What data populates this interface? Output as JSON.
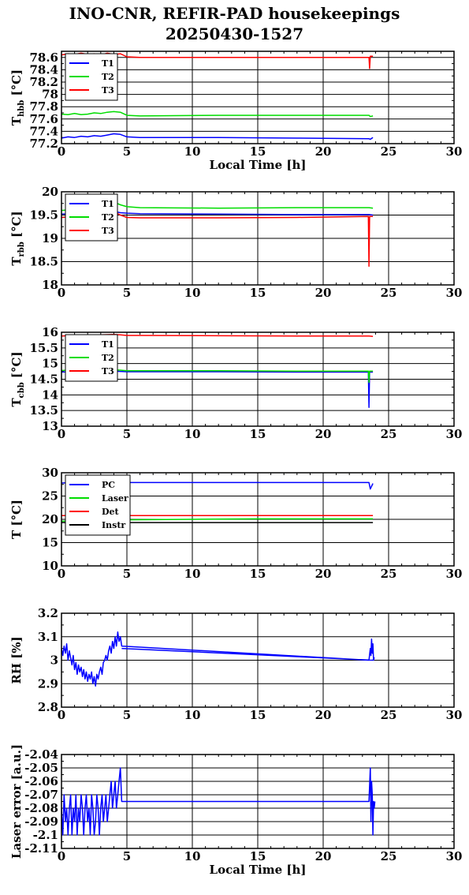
{
  "title_line1": "INO-CNR, REFIR-PAD housekeepings",
  "title_line2": "20250430-1527",
  "colors": {
    "blue": "#0000ff",
    "green": "#00dd00",
    "red": "#ff0000",
    "black": "#000000"
  },
  "chart_data": [
    {
      "type": "line",
      "ylabel": "T_hbb [°C]",
      "xlabel": "Local Time [h]",
      "xlim": [
        0,
        30
      ],
      "ylim": [
        77.2,
        78.7
      ],
      "xticks": [
        0,
        5,
        10,
        15,
        20,
        25,
        30
      ],
      "yticks": [
        77.2,
        77.4,
        77.6,
        77.8,
        78,
        78.2,
        78.4,
        78.6
      ],
      "yticklabels": [
        "77.2",
        "77.4",
        "77.6",
        "77.8",
        "78",
        "78.2",
        "78.4",
        "78.6"
      ],
      "grid": true,
      "legend_position": "top-left",
      "series": [
        {
          "name": "T1",
          "color": "blue",
          "x": [
            0,
            0.5,
            1,
            1.5,
            2,
            2.5,
            3,
            3.5,
            4,
            4.5,
            5,
            6,
            12,
            18,
            23.5,
            23.6,
            23.8
          ],
          "y": [
            77.29,
            77.31,
            77.3,
            77.32,
            77.31,
            77.33,
            77.32,
            77.34,
            77.36,
            77.35,
            77.31,
            77.3,
            77.3,
            77.29,
            77.28,
            77.27,
            77.3
          ]
        },
        {
          "name": "T2",
          "color": "green",
          "x": [
            0,
            0.5,
            1,
            1.5,
            2,
            2.5,
            3,
            3.5,
            4,
            4.5,
            5,
            6,
            12,
            18,
            23.5,
            23.6,
            23.8
          ],
          "y": [
            77.68,
            77.67,
            77.69,
            77.67,
            77.68,
            77.7,
            77.69,
            77.71,
            77.72,
            77.71,
            77.66,
            77.65,
            77.66,
            77.66,
            77.66,
            77.64,
            77.65
          ]
        },
        {
          "name": "T3",
          "color": "red",
          "x": [
            0,
            0.5,
            1,
            1.5,
            2,
            2.5,
            3,
            3.5,
            4,
            4.5,
            5,
            6,
            12,
            18,
            23.5,
            23.55,
            23.6,
            23.8
          ],
          "y": [
            78.64,
            78.66,
            78.65,
            78.67,
            78.65,
            78.66,
            78.64,
            78.67,
            78.65,
            78.66,
            78.61,
            78.6,
            78.6,
            78.6,
            78.6,
            78.42,
            78.62,
            78.62
          ]
        }
      ]
    },
    {
      "type": "line",
      "ylabel": "T_rbb [°C]",
      "xlabel": "",
      "xlim": [
        0,
        30
      ],
      "ylim": [
        18,
        20
      ],
      "xticks": [
        0,
        5,
        10,
        15,
        20,
        25,
        30
      ],
      "yticks": [
        18,
        18.5,
        19,
        19.5,
        20
      ],
      "yticklabels": [
        "18",
        "18.5",
        "19",
        "19.5",
        "20"
      ],
      "grid": true,
      "legend_position": "top-left",
      "series": [
        {
          "name": "T1",
          "color": "blue",
          "x": [
            0,
            1,
            2,
            3,
            3.5,
            4,
            4.5,
            5,
            6,
            12,
            18,
            23.5,
            23.8
          ],
          "y": [
            19.52,
            19.53,
            19.55,
            19.56,
            19.6,
            19.58,
            19.55,
            19.54,
            19.53,
            19.52,
            19.51,
            19.51,
            19.5
          ]
        },
        {
          "name": "T2",
          "color": "green",
          "x": [
            0,
            1,
            2,
            3,
            3.5,
            4,
            4.5,
            5,
            6,
            12,
            18,
            23.5,
            23.8
          ],
          "y": [
            19.6,
            19.62,
            19.65,
            19.68,
            19.8,
            19.78,
            19.72,
            19.68,
            19.66,
            19.65,
            19.66,
            19.66,
            19.65
          ]
        },
        {
          "name": "T3",
          "color": "red",
          "x": [
            0,
            1,
            2,
            3,
            3.5,
            4,
            4.5,
            5,
            6,
            12,
            18,
            23.45,
            23.5,
            23.55,
            23.8
          ],
          "y": [
            19.45,
            19.47,
            19.5,
            19.52,
            19.6,
            19.58,
            19.5,
            19.45,
            19.44,
            19.44,
            19.45,
            19.47,
            18.4,
            19.47,
            19.47
          ]
        }
      ]
    },
    {
      "type": "line",
      "ylabel": "T_cbb [°C]",
      "xlabel": "",
      "xlim": [
        0,
        30
      ],
      "ylim": [
        13,
        16
      ],
      "xticks": [
        0,
        5,
        10,
        15,
        20,
        25,
        30
      ],
      "yticks": [
        13,
        13.5,
        14,
        14.5,
        15,
        15.5,
        16
      ],
      "yticklabels": [
        "13",
        "13.5",
        "14",
        "14.5",
        "15",
        "15.5",
        "16"
      ],
      "grid": true,
      "legend_position": "top-left",
      "series": [
        {
          "name": "T1",
          "color": "blue",
          "x": [
            0,
            1,
            2,
            3,
            4,
            4.5,
            5,
            6,
            12,
            18,
            23.45,
            23.5,
            23.55,
            23.8
          ],
          "y": [
            14.73,
            14.74,
            14.75,
            14.76,
            14.76,
            14.75,
            14.74,
            14.74,
            14.74,
            14.73,
            14.73,
            13.6,
            14.73,
            14.73
          ]
        },
        {
          "name": "T2",
          "color": "green",
          "x": [
            0,
            1,
            2,
            3,
            4,
            4.5,
            5,
            6,
            12,
            18,
            23.45,
            23.5,
            23.55,
            23.8
          ],
          "y": [
            14.78,
            14.79,
            14.8,
            14.8,
            14.8,
            14.79,
            14.77,
            14.77,
            14.77,
            14.76,
            14.76,
            14.4,
            14.76,
            14.76
          ]
        },
        {
          "name": "T3",
          "color": "red",
          "x": [
            0,
            1,
            2,
            3,
            4,
            4.5,
            5,
            6,
            12,
            18,
            23.5,
            23.8
          ],
          "y": [
            15.88,
            15.9,
            15.91,
            15.92,
            15.93,
            15.92,
            15.9,
            15.9,
            15.89,
            15.88,
            15.88,
            15.87
          ]
        }
      ]
    },
    {
      "type": "line",
      "ylabel": "T [°C]",
      "xlabel": "",
      "xlim": [
        0,
        30
      ],
      "ylim": [
        10,
        30
      ],
      "xticks": [
        0,
        5,
        10,
        15,
        20,
        25,
        30
      ],
      "yticks": [
        10,
        15,
        20,
        25,
        30
      ],
      "yticklabels": [
        "10",
        "15",
        "20",
        "25",
        "30"
      ],
      "grid": true,
      "legend_position": "top-left",
      "series": [
        {
          "name": "PC",
          "color": "blue",
          "x": [
            0,
            1,
            2,
            2.5,
            3,
            4,
            5,
            10,
            15,
            20,
            23.5,
            23.6,
            23.8
          ],
          "y": [
            27.8,
            27.9,
            28.1,
            28.6,
            28.2,
            28,
            27.9,
            27.9,
            27.9,
            27.9,
            27.9,
            26.5,
            27.7
          ]
        },
        {
          "name": "Laser",
          "color": "green",
          "x": [
            0,
            2,
            4,
            5,
            10,
            15,
            20,
            23.8
          ],
          "y": [
            19.6,
            19.7,
            19.8,
            19.9,
            20,
            20.1,
            20.1,
            20.1
          ]
        },
        {
          "name": "Det",
          "color": "red",
          "x": [
            0,
            5,
            10,
            15,
            20,
            23.8
          ],
          "y": [
            20.8,
            20.8,
            20.8,
            20.8,
            20.8,
            20.8
          ]
        },
        {
          "name": "Instr",
          "color": "black",
          "x": [
            0,
            5,
            10,
            15,
            20,
            23.8
          ],
          "y": [
            19.3,
            19.3,
            19.3,
            19.3,
            19.3,
            19.3
          ]
        }
      ]
    },
    {
      "type": "line",
      "ylabel": "RH [%]",
      "xlabel": "",
      "xlim": [
        0,
        30
      ],
      "ylim": [
        2.8,
        3.2
      ],
      "xticks": [
        0,
        5,
        10,
        15,
        20,
        25,
        30
      ],
      "yticks": [
        2.8,
        2.9,
        3,
        3.1,
        3.2
      ],
      "yticklabels": [
        "2.8",
        "2.9",
        "3",
        "3.1",
        "3.2"
      ],
      "grid": true,
      "legend_position": "none",
      "series": [
        {
          "color": "blue",
          "x": [
            0,
            0.1,
            0.2,
            0.3,
            0.4,
            0.5,
            0.6,
            0.7,
            0.8,
            0.9,
            1.0,
            1.1,
            1.2,
            1.3,
            1.4,
            1.5,
            1.6,
            1.7,
            1.8,
            1.9,
            2.0,
            2.1,
            2.2,
            2.3,
            2.4,
            2.5,
            2.6,
            2.7,
            2.8,
            2.9,
            3.0,
            3.1,
            3.2,
            3.3,
            3.4,
            3.5,
            3.6,
            3.7,
            3.8,
            3.9,
            4.0,
            4.1,
            4.2,
            4.3,
            4.4,
            4.5,
            4.6,
            23.5,
            23.6,
            23.65,
            23.7,
            23.75,
            23.8,
            23.85,
            23.9,
            23.8,
            4.6
          ],
          "y": [
            3.05,
            3.02,
            3.06,
            3.03,
            3.07,
            3.0,
            3.04,
            3.01,
            2.98,
            3.02,
            2.96,
            2.99,
            2.94,
            2.98,
            2.95,
            2.97,
            2.93,
            2.96,
            2.92,
            2.95,
            2.91,
            2.94,
            2.92,
            2.95,
            2.9,
            2.93,
            2.89,
            2.94,
            2.92,
            2.95,
            2.97,
            2.94,
            2.99,
            3.0,
            3.02,
            3.0,
            3.04,
            3.06,
            3.03,
            3.08,
            3.05,
            3.1,
            3.06,
            3.12,
            3.08,
            3.1,
            3.06,
            3.0,
            3.05,
            3.02,
            3.09,
            3.03,
            3.07,
            3.0,
            3.01,
            3.0,
            3.05
          ]
        }
      ]
    },
    {
      "type": "line",
      "ylabel": "Laser error [a.u.]",
      "xlabel": "Local Time [h]",
      "xlim": [
        0,
        30
      ],
      "ylim": [
        -2.11,
        -2.04
      ],
      "xticks": [
        0,
        5,
        10,
        15,
        20,
        25,
        30
      ],
      "yticks": [
        -2.11,
        -2.1,
        -2.09,
        -2.08,
        -2.07,
        -2.06,
        -2.05,
        -2.04
      ],
      "yticklabels": [
        "-2.11",
        "-2.1",
        "-2.09",
        "-2.08",
        "-2.07",
        "-2.06",
        "-2.05",
        "-2.04"
      ],
      "grid": true,
      "legend_position": "none",
      "series": [
        {
          "color": "blue",
          "x": [
            0,
            0.1,
            0.2,
            0.3,
            0.4,
            0.5,
            0.6,
            0.7,
            0.8,
            0.9,
            1.0,
            1.1,
            1.2,
            1.3,
            1.4,
            1.5,
            1.6,
            1.7,
            1.8,
            1.9,
            2.0,
            2.1,
            2.2,
            2.3,
            2.4,
            2.5,
            2.6,
            2.7,
            2.8,
            2.9,
            3.0,
            3.1,
            3.2,
            3.3,
            3.4,
            3.5,
            3.6,
            3.7,
            3.8,
            3.9,
            4.0,
            4.1,
            4.2,
            4.3,
            4.4,
            4.5,
            4.6,
            23.5,
            23.6,
            23.65,
            23.7,
            23.75,
            23.8,
            23.85,
            23.9,
            23.95
          ],
          "y": [
            -2.08,
            -2.1,
            -2.07,
            -2.09,
            -2.08,
            -2.1,
            -2.08,
            -2.07,
            -2.1,
            -2.08,
            -2.09,
            -2.07,
            -2.1,
            -2.08,
            -2.09,
            -2.07,
            -2.08,
            -2.1,
            -2.08,
            -2.07,
            -2.09,
            -2.08,
            -2.1,
            -2.07,
            -2.08,
            -2.1,
            -2.09,
            -2.07,
            -2.08,
            -2.1,
            -2.08,
            -2.07,
            -2.09,
            -2.08,
            -2.07,
            -2.09,
            -2.08,
            -2.07,
            -2.06,
            -2.08,
            -2.07,
            -2.06,
            -2.08,
            -2.07,
            -2.06,
            -2.05,
            -2.075,
            -2.075,
            -2.05,
            -2.09,
            -2.06,
            -2.07,
            -2.1,
            -2.075,
            -2.08,
            -2.075
          ]
        }
      ]
    }
  ]
}
